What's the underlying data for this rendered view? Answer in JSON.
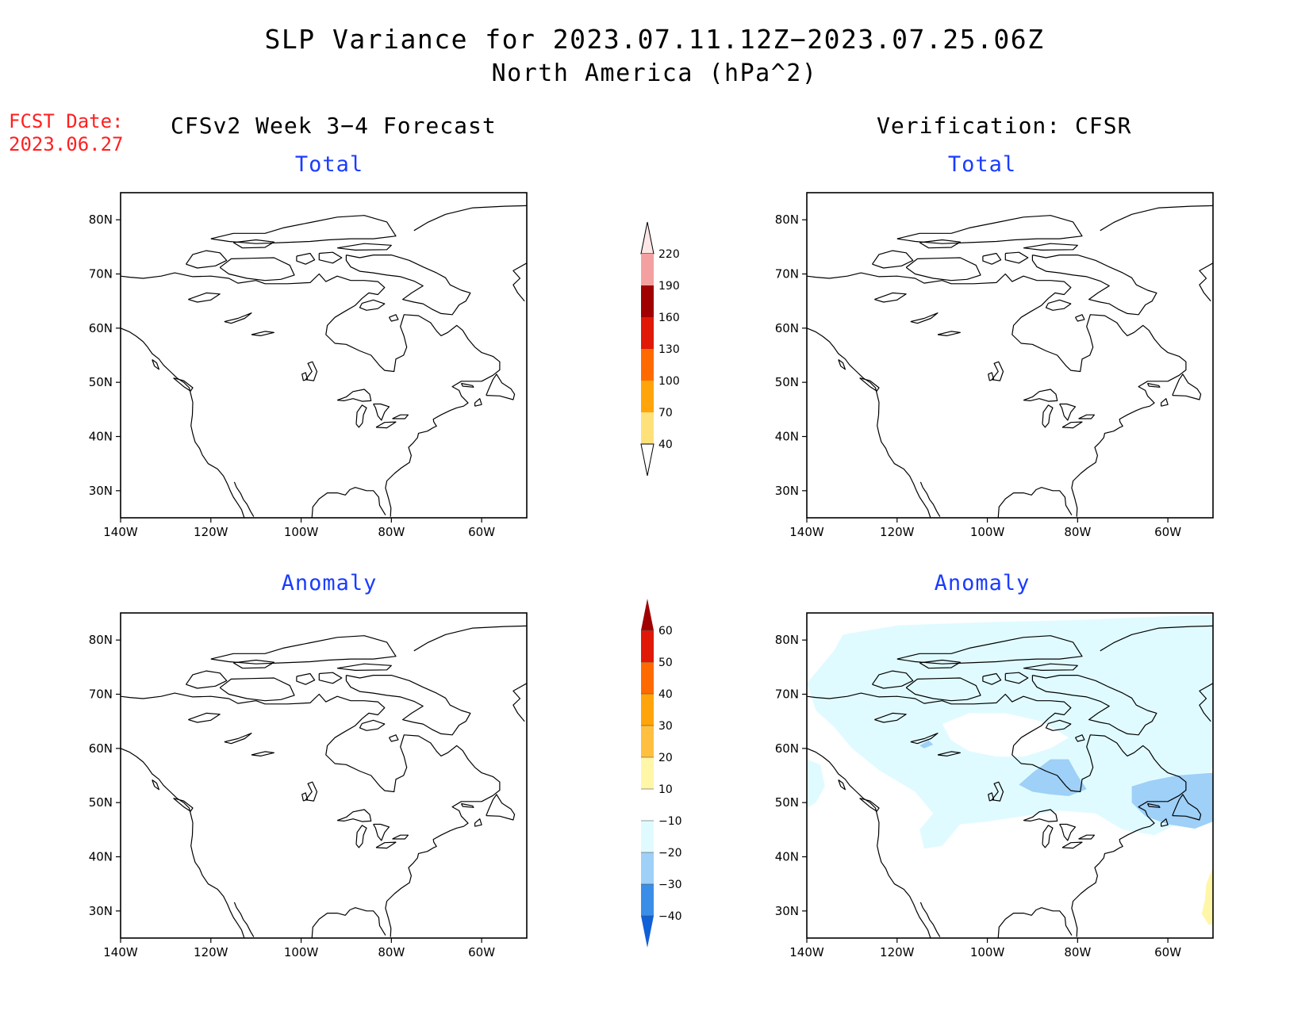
{
  "title": {
    "line1": "SLP Variance for 2023.07.11.12Z−2023.07.25.06Z",
    "line2": "North America (hPa^2)"
  },
  "fcst_date": {
    "label": "FCST Date:",
    "value": "2023.06.27"
  },
  "left_heading": "CFSv2 Week 3−4 Forecast",
  "right_heading": "Verification: CFSR",
  "panels": {
    "top_left": {
      "subtitle": "Total"
    },
    "top_right": {
      "subtitle": "Total"
    },
    "bottom_left": {
      "subtitle": "Anomaly"
    },
    "bottom_right": {
      "subtitle": "Anomaly"
    }
  },
  "axes": {
    "lat_labels": [
      "80N",
      "70N",
      "60N",
      "50N",
      "40N",
      "30N"
    ],
    "lon_labels": [
      "140W",
      "120W",
      "100W",
      "80W",
      "60W"
    ]
  },
  "colorbar_total": {
    "labels": [
      "220",
      "190",
      "160",
      "130",
      "100",
      "70",
      "40"
    ],
    "colors": [
      "#ffe6e6",
      "#f4a0a0",
      "#a00000",
      "#e01808",
      "#ff6a00",
      "#ffa40a",
      "#ffe17a"
    ]
  },
  "colorbar_anomaly": {
    "labels": [
      "60",
      "50",
      "40",
      "30",
      "20",
      "10",
      "−10",
      "−20",
      "−30",
      "−40"
    ],
    "colors": [
      "#a00000",
      "#e01808",
      "#ff6a00",
      "#ffa40a",
      "#ffc040",
      "#fff6a8",
      "#ffffff",
      "#e0fbff",
      "#9ed0f8",
      "#3a8ee8",
      "#1060d8"
    ]
  },
  "chart_data": {
    "type": "map",
    "projection": "lat-lon",
    "region": "North America",
    "lon_range_deg": [
      -140,
      -50
    ],
    "lat_range_deg": [
      25,
      85
    ],
    "variable": "SLP Variance",
    "units": "hPa^2",
    "panels": [
      {
        "position": "top-left",
        "source": "CFSv2 Week 3−4 Forecast",
        "field": "Total",
        "shading": "none"
      },
      {
        "position": "top-right",
        "source": "Verification: CFSR",
        "field": "Total",
        "shading": "none"
      },
      {
        "position": "bottom-left",
        "source": "CFSv2 Week 3−4 Forecast",
        "field": "Anomaly",
        "shading": "none"
      },
      {
        "position": "bottom-right",
        "source": "Verification: CFSR",
        "field": "Anomaly",
        "shading": "negative anomalies -10 to -30 over Canada, Hudson Bay and the Arctic; small positive 10–20 near 30N 52W"
      }
    ]
  }
}
